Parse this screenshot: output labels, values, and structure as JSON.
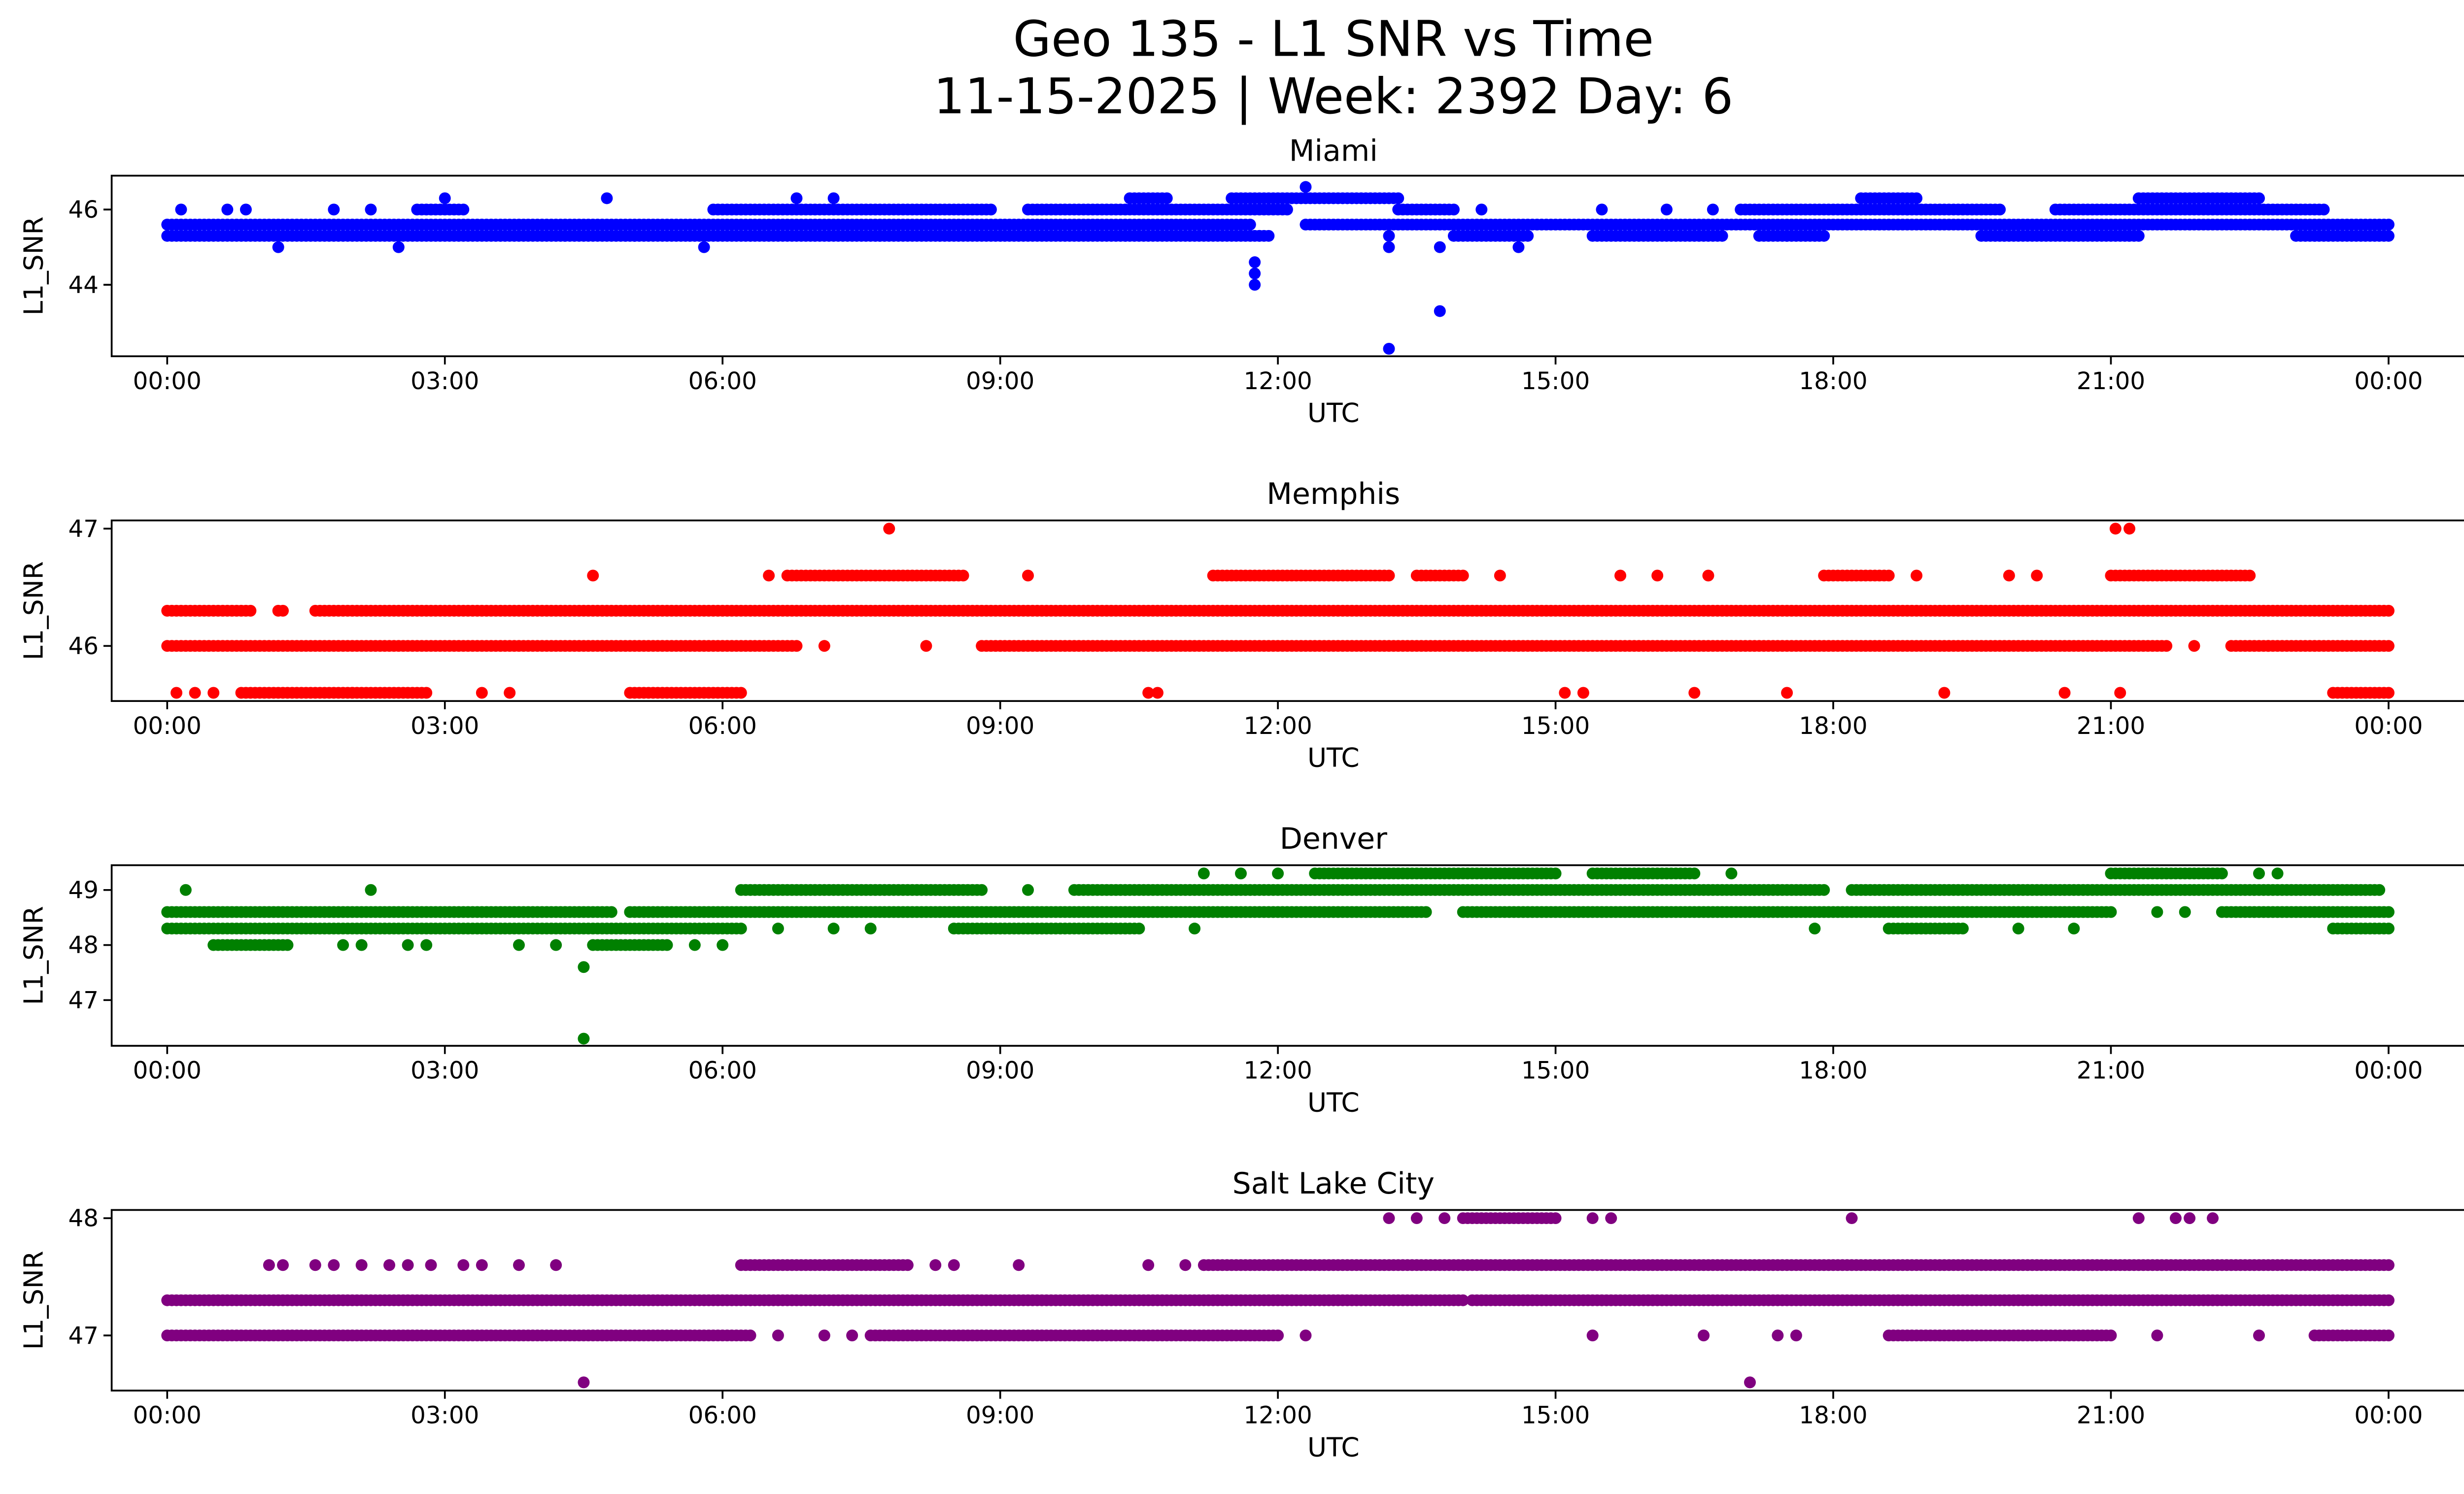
{
  "figure": {
    "title_line1": "Geo 135 - L1 SNR vs Time",
    "title_line2": "11-15-2025 | Week: 2392 Day: 6"
  },
  "chart_data": [
    {
      "type": "scatter",
      "title": "Miami",
      "xlabel": "UTC",
      "ylabel": "L1_SNR",
      "color": "#0000ff",
      "xlim_hours": [
        -0.6,
        25.8
      ],
      "ylim": [
        42.1,
        46.9
      ],
      "xticks": [
        "00:00",
        "03:00",
        "06:00",
        "09:00",
        "12:00",
        "15:00",
        "18:00",
        "21:00",
        "00:00"
      ],
      "yticks": [
        {
          "value": 44,
          "label": "44"
        },
        {
          "value": 46,
          "label": "46"
        }
      ],
      "runs": [
        {
          "y": 45.3,
          "from": 0.0,
          "to": 11.9
        },
        {
          "y": 45.6,
          "from": 0.0,
          "to": 11.7
        },
        {
          "y": 45.6,
          "from": 12.3,
          "to": 24.0
        },
        {
          "y": 45.3,
          "from": 13.9,
          "to": 14.7
        },
        {
          "y": 45.3,
          "from": 15.4,
          "to": 16.8
        },
        {
          "y": 45.3,
          "from": 17.2,
          "to": 17.9
        },
        {
          "y": 45.3,
          "from": 19.6,
          "to": 21.3
        },
        {
          "y": 45.3,
          "from": 23.0,
          "to": 24.0
        },
        {
          "y": 46.0,
          "from": 2.7,
          "to": 3.2
        },
        {
          "y": 46.0,
          "from": 5.9,
          "to": 8.9
        },
        {
          "y": 46.0,
          "from": 9.3,
          "to": 12.1
        },
        {
          "y": 46.0,
          "from": 13.3,
          "to": 13.9
        },
        {
          "y": 46.0,
          "from": 17.0,
          "to": 19.8
        },
        {
          "y": 46.0,
          "from": 20.4,
          "to": 23.3
        },
        {
          "y": 46.3,
          "from": 10.4,
          "to": 10.8
        },
        {
          "y": 46.3,
          "from": 11.5,
          "to": 13.3
        },
        {
          "y": 46.3,
          "from": 18.3,
          "to": 18.9
        },
        {
          "y": 46.3,
          "from": 21.3,
          "to": 22.6
        }
      ],
      "points": [
        {
          "x": 0.15,
          "y": 46.0
        },
        {
          "x": 0.65,
          "y": 46.0
        },
        {
          "x": 0.85,
          "y": 46.0
        },
        {
          "x": 1.2,
          "y": 45.0
        },
        {
          "x": 1.8,
          "y": 46.0
        },
        {
          "x": 2.2,
          "y": 46.0
        },
        {
          "x": 2.5,
          "y": 45.0
        },
        {
          "x": 3.0,
          "y": 46.3
        },
        {
          "x": 4.75,
          "y": 46.3
        },
        {
          "x": 5.05,
          "y": 45.3
        },
        {
          "x": 5.8,
          "y": 45.0
        },
        {
          "x": 6.8,
          "y": 46.3
        },
        {
          "x": 7.2,
          "y": 46.3
        },
        {
          "x": 7.7,
          "y": 45.3
        },
        {
          "x": 11.75,
          "y": 44.3
        },
        {
          "x": 11.75,
          "y": 44.6
        },
        {
          "x": 11.75,
          "y": 44.0
        },
        {
          "x": 11.8,
          "y": 45.3
        },
        {
          "x": 12.3,
          "y": 46.6
        },
        {
          "x": 13.2,
          "y": 45.0
        },
        {
          "x": 13.2,
          "y": 45.3
        },
        {
          "x": 13.2,
          "y": 42.3
        },
        {
          "x": 13.75,
          "y": 45.0
        },
        {
          "x": 13.75,
          "y": 43.3
        },
        {
          "x": 14.2,
          "y": 46.0
        },
        {
          "x": 14.6,
          "y": 45.0
        },
        {
          "x": 15.5,
          "y": 46.0
        },
        {
          "x": 16.2,
          "y": 46.0
        },
        {
          "x": 16.7,
          "y": 46.0
        },
        {
          "x": 17.5,
          "y": 45.3
        },
        {
          "x": 18.8,
          "y": 46.0
        }
      ]
    },
    {
      "type": "scatter",
      "title": "Memphis",
      "xlabel": "UTC",
      "ylabel": "L1_SNR",
      "color": "#ff0000",
      "xlim_hours": [
        -0.6,
        25.8
      ],
      "ylim": [
        45.53,
        47.07
      ],
      "xticks": [
        "00:00",
        "03:00",
        "06:00",
        "09:00",
        "12:00",
        "15:00",
        "18:00",
        "21:00",
        "00:00"
      ],
      "yticks": [
        {
          "value": 46,
          "label": "46"
        },
        {
          "value": 47,
          "label": "47"
        }
      ],
      "runs": [
        {
          "y": 46.3,
          "from": 0.0,
          "to": 0.9
        },
        {
          "y": 46.3,
          "from": 1.6,
          "to": 24.0
        },
        {
          "y": 46.0,
          "from": 0.0,
          "to": 6.8
        },
        {
          "y": 46.0,
          "from": 8.8,
          "to": 21.6
        },
        {
          "y": 46.0,
          "from": 22.3,
          "to": 24.0
        },
        {
          "y": 45.6,
          "from": 0.8,
          "to": 2.0
        },
        {
          "y": 45.6,
          "from": 2.0,
          "to": 2.8
        },
        {
          "y": 45.6,
          "from": 5.0,
          "to": 6.2
        },
        {
          "y": 45.6,
          "from": 23.4,
          "to": 24.0
        },
        {
          "y": 46.6,
          "from": 6.7,
          "to": 8.6
        },
        {
          "y": 46.6,
          "from": 11.3,
          "to": 13.2
        },
        {
          "y": 46.6,
          "from": 13.5,
          "to": 14.0
        },
        {
          "y": 46.6,
          "from": 17.9,
          "to": 18.6
        },
        {
          "y": 46.6,
          "from": 21.0,
          "to": 22.5
        }
      ],
      "points": [
        {
          "x": 0.1,
          "y": 45.6
        },
        {
          "x": 0.3,
          "y": 45.6
        },
        {
          "x": 0.5,
          "y": 45.6
        },
        {
          "x": 1.25,
          "y": 46.3
        },
        {
          "x": 1.2,
          "y": 46.3
        },
        {
          "x": 3.4,
          "y": 45.6
        },
        {
          "x": 3.7,
          "y": 45.6
        },
        {
          "x": 4.6,
          "y": 46.6
        },
        {
          "x": 6.5,
          "y": 46.6
        },
        {
          "x": 7.1,
          "y": 46.0
        },
        {
          "x": 7.8,
          "y": 47.0
        },
        {
          "x": 8.2,
          "y": 46.0
        },
        {
          "x": 9.3,
          "y": 46.6
        },
        {
          "x": 10.6,
          "y": 45.6
        },
        {
          "x": 10.7,
          "y": 45.6
        },
        {
          "x": 14.4,
          "y": 46.6
        },
        {
          "x": 15.1,
          "y": 45.6
        },
        {
          "x": 15.3,
          "y": 45.6
        },
        {
          "x": 15.7,
          "y": 46.6
        },
        {
          "x": 16.1,
          "y": 46.6
        },
        {
          "x": 16.5,
          "y": 45.6
        },
        {
          "x": 16.65,
          "y": 46.6
        },
        {
          "x": 17.5,
          "y": 45.6
        },
        {
          "x": 18.9,
          "y": 46.6
        },
        {
          "x": 19.2,
          "y": 45.6
        },
        {
          "x": 19.9,
          "y": 46.6
        },
        {
          "x": 20.2,
          "y": 46.6
        },
        {
          "x": 20.5,
          "y": 45.6
        },
        {
          "x": 21.05,
          "y": 47.0
        },
        {
          "x": 21.2,
          "y": 47.0
        },
        {
          "x": 21.1,
          "y": 45.6
        },
        {
          "x": 21.9,
          "y": 46.0
        },
        {
          "x": 22.7,
          "y": 46.0
        }
      ]
    },
    {
      "type": "scatter",
      "title": "Denver",
      "xlabel": "UTC",
      "ylabel": "L1_SNR",
      "color": "#008000",
      "xlim_hours": [
        -0.6,
        25.8
      ],
      "ylim": [
        46.17,
        49.45
      ],
      "xticks": [
        "00:00",
        "03:00",
        "06:00",
        "09:00",
        "12:00",
        "15:00",
        "18:00",
        "21:00",
        "00:00"
      ],
      "yticks": [
        {
          "value": 47,
          "label": "47"
        },
        {
          "value": 48,
          "label": "48"
        },
        {
          "value": 49,
          "label": "49"
        }
      ],
      "runs": [
        {
          "y": 48.6,
          "from": 0.0,
          "to": 4.8
        },
        {
          "y": 48.6,
          "from": 5.0,
          "to": 13.6
        },
        {
          "y": 48.6,
          "from": 14.0,
          "to": 21.0
        },
        {
          "y": 48.6,
          "from": 22.2,
          "to": 24.0
        },
        {
          "y": 48.3,
          "from": 0.0,
          "to": 6.2
        },
        {
          "y": 48.3,
          "from": 8.5,
          "to": 10.5
        },
        {
          "y": 48.3,
          "from": 23.4,
          "to": 24.0
        },
        {
          "y": 48.0,
          "from": 0.5,
          "to": 1.3
        },
        {
          "y": 48.0,
          "from": 4.6,
          "to": 5.4
        },
        {
          "y": 49.0,
          "from": 6.2,
          "to": 8.8
        },
        {
          "y": 49.0,
          "from": 9.8,
          "to": 17.9
        },
        {
          "y": 49.0,
          "from": 18.2,
          "to": 23.9
        },
        {
          "y": 49.3,
          "from": 12.4,
          "to": 15.0
        },
        {
          "y": 49.3,
          "from": 15.4,
          "to": 16.5
        },
        {
          "y": 49.3,
          "from": 21.0,
          "to": 22.2
        },
        {
          "y": 48.3,
          "from": 18.6,
          "to": 19.4
        }
      ],
      "points": [
        {
          "x": 0.2,
          "y": 49.0
        },
        {
          "x": 2.2,
          "y": 49.0
        },
        {
          "x": 1.9,
          "y": 48.0
        },
        {
          "x": 2.1,
          "y": 48.0
        },
        {
          "x": 2.6,
          "y": 48.0
        },
        {
          "x": 2.8,
          "y": 48.0
        },
        {
          "x": 3.8,
          "y": 48.0
        },
        {
          "x": 4.2,
          "y": 48.0
        },
        {
          "x": 4.5,
          "y": 47.6
        },
        {
          "x": 4.5,
          "y": 46.3
        },
        {
          "x": 5.7,
          "y": 48.0
        },
        {
          "x": 6.0,
          "y": 48.0
        },
        {
          "x": 6.6,
          "y": 48.3
        },
        {
          "x": 7.2,
          "y": 48.3
        },
        {
          "x": 7.6,
          "y": 48.3
        },
        {
          "x": 9.3,
          "y": 49.0
        },
        {
          "x": 11.1,
          "y": 48.3
        },
        {
          "x": 11.2,
          "y": 49.3
        },
        {
          "x": 11.6,
          "y": 49.3
        },
        {
          "x": 12.0,
          "y": 49.3
        },
        {
          "x": 16.9,
          "y": 49.3
        },
        {
          "x": 17.8,
          "y": 48.3
        },
        {
          "x": 20.0,
          "y": 48.3
        },
        {
          "x": 20.6,
          "y": 48.3
        },
        {
          "x": 21.5,
          "y": 48.6
        },
        {
          "x": 21.8,
          "y": 48.6
        },
        {
          "x": 22.6,
          "y": 49.3
        },
        {
          "x": 22.8,
          "y": 49.3
        }
      ]
    },
    {
      "type": "scatter",
      "title": "Salt Lake City",
      "xlabel": "UTC",
      "ylabel": "L1_SNR",
      "color": "#800080",
      "xlim_hours": [
        -0.6,
        25.8
      ],
      "ylim": [
        46.53,
        48.07
      ],
      "xticks": [
        "00:00",
        "03:00",
        "06:00",
        "09:00",
        "12:00",
        "15:00",
        "18:00",
        "21:00",
        "00:00"
      ],
      "yticks": [
        {
          "value": 47,
          "label": "47"
        },
        {
          "value": 48,
          "label": "48"
        }
      ],
      "runs": [
        {
          "y": 47.3,
          "from": 0.0,
          "to": 14.0
        },
        {
          "y": 47.3,
          "from": 14.1,
          "to": 24.0
        },
        {
          "y": 47.0,
          "from": 0.0,
          "to": 6.3
        },
        {
          "y": 47.0,
          "from": 7.6,
          "to": 12.0
        },
        {
          "y": 47.0,
          "from": 18.6,
          "to": 21.0
        },
        {
          "y": 47.0,
          "from": 23.2,
          "to": 24.0
        },
        {
          "y": 47.6,
          "from": 6.2,
          "to": 8.0
        },
        {
          "y": 47.6,
          "from": 11.2,
          "to": 24.0
        },
        {
          "y": 48.0,
          "from": 14.0,
          "to": 15.0
        }
      ],
      "points": [
        {
          "x": 1.1,
          "y": 47.6
        },
        {
          "x": 1.25,
          "y": 47.6
        },
        {
          "x": 1.6,
          "y": 47.6
        },
        {
          "x": 1.8,
          "y": 47.6
        },
        {
          "x": 2.1,
          "y": 47.6
        },
        {
          "x": 2.4,
          "y": 47.6
        },
        {
          "x": 2.6,
          "y": 47.6
        },
        {
          "x": 2.85,
          "y": 47.6
        },
        {
          "x": 3.2,
          "y": 47.6
        },
        {
          "x": 3.4,
          "y": 47.6
        },
        {
          "x": 3.8,
          "y": 47.6
        },
        {
          "x": 4.2,
          "y": 47.6
        },
        {
          "x": 4.5,
          "y": 46.6
        },
        {
          "x": 6.6,
          "y": 47.0
        },
        {
          "x": 7.1,
          "y": 47.0
        },
        {
          "x": 7.4,
          "y": 47.0
        },
        {
          "x": 8.3,
          "y": 47.6
        },
        {
          "x": 8.5,
          "y": 47.6
        },
        {
          "x": 9.2,
          "y": 47.6
        },
        {
          "x": 10.6,
          "y": 47.6
        },
        {
          "x": 11.0,
          "y": 47.6
        },
        {
          "x": 12.3,
          "y": 47.0
        },
        {
          "x": 13.2,
          "y": 48.0
        },
        {
          "x": 13.5,
          "y": 48.0
        },
        {
          "x": 13.8,
          "y": 48.0
        },
        {
          "x": 15.4,
          "y": 48.0
        },
        {
          "x": 15.6,
          "y": 48.0
        },
        {
          "x": 15.4,
          "y": 47.0
        },
        {
          "x": 16.6,
          "y": 47.0
        },
        {
          "x": 17.1,
          "y": 46.6
        },
        {
          "x": 17.4,
          "y": 47.0
        },
        {
          "x": 17.6,
          "y": 47.0
        },
        {
          "x": 18.2,
          "y": 48.0
        },
        {
          "x": 21.3,
          "y": 48.0
        },
        {
          "x": 21.7,
          "y": 48.0
        },
        {
          "x": 21.85,
          "y": 48.0
        },
        {
          "x": 22.1,
          "y": 48.0
        },
        {
          "x": 21.5,
          "y": 47.0
        },
        {
          "x": 22.6,
          "y": 47.0
        }
      ]
    }
  ]
}
